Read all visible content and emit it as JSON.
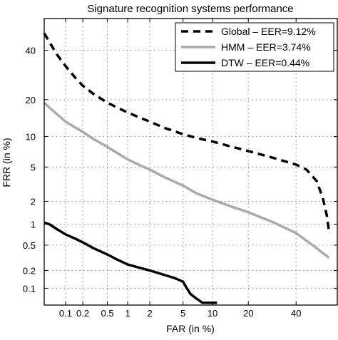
{
  "chart_data": {
    "type": "line",
    "title": "Signature recognition systems performance",
    "xlabel": "FAR (in %)",
    "ylabel": "FRR (in %)",
    "x_scale": "normal-deviate",
    "y_scale": "normal-deviate",
    "xlim": [
      0.04,
      60
    ],
    "ylim": [
      0.05,
      55
    ],
    "xticks": [
      {
        "value": 0.1,
        "label": "0.1"
      },
      {
        "value": 0.2,
        "label": "0.2"
      },
      {
        "value": 0.5,
        "label": "0.5"
      },
      {
        "value": 1,
        "label": "1"
      },
      {
        "value": 2,
        "label": "2"
      },
      {
        "value": 5,
        "label": "5"
      },
      {
        "value": 10,
        "label": "10"
      },
      {
        "value": 20,
        "label": "20"
      },
      {
        "value": 40,
        "label": "40"
      }
    ],
    "yticks": [
      {
        "value": 0.1,
        "label": "0.1"
      },
      {
        "value": 0.2,
        "label": "0.2"
      },
      {
        "value": 0.5,
        "label": "0.5"
      },
      {
        "value": 1,
        "label": "1"
      },
      {
        "value": 2,
        "label": "2"
      },
      {
        "value": 5,
        "label": "5"
      },
      {
        "value": 10,
        "label": "10"
      },
      {
        "value": 20,
        "label": "20"
      },
      {
        "value": 40,
        "label": "40"
      }
    ],
    "grid": true,
    "legend_position": "top-right",
    "series": [
      {
        "name": "Global – EER=9.12%",
        "color": "#000000",
        "dash": "dashed",
        "points": [
          [
            0.04,
            48
          ],
          [
            0.05,
            44
          ],
          [
            0.07,
            38
          ],
          [
            0.1,
            33
          ],
          [
            0.15,
            28
          ],
          [
            0.2,
            25
          ],
          [
            0.3,
            22
          ],
          [
            0.5,
            19
          ],
          [
            0.7,
            17.5
          ],
          [
            1,
            16
          ],
          [
            1.5,
            14.5
          ],
          [
            2,
            13.5
          ],
          [
            3,
            12
          ],
          [
            5,
            10.5
          ],
          [
            7,
            9.7
          ],
          [
            10,
            9
          ],
          [
            15,
            8
          ],
          [
            20,
            7.3
          ],
          [
            30,
            6.2
          ],
          [
            40,
            5.3
          ],
          [
            45,
            4.7
          ],
          [
            50,
            3.5
          ],
          [
            53,
            2.2
          ],
          [
            55,
            1.3
          ],
          [
            56,
            0.8
          ]
        ]
      },
      {
        "name": "HMM – EER=3.74%",
        "color": "#aaaaaa",
        "dash": "solid",
        "points": [
          [
            0.04,
            19
          ],
          [
            0.05,
            17.5
          ],
          [
            0.07,
            15.5
          ],
          [
            0.1,
            13.5
          ],
          [
            0.15,
            12
          ],
          [
            0.2,
            11
          ],
          [
            0.3,
            9.5
          ],
          [
            0.5,
            8
          ],
          [
            0.7,
            7
          ],
          [
            1,
            6
          ],
          [
            1.5,
            5.2
          ],
          [
            2,
            4.7
          ],
          [
            3,
            3.9
          ],
          [
            5,
            3.1
          ],
          [
            7,
            2.5
          ],
          [
            10,
            2.1
          ],
          [
            15,
            1.7
          ],
          [
            20,
            1.45
          ],
          [
            30,
            1.05
          ],
          [
            40,
            0.75
          ],
          [
            50,
            0.45
          ],
          [
            56,
            0.32
          ]
        ]
      },
      {
        "name": "DTW – EER=0.44%",
        "color": "#000000",
        "dash": "solid",
        "points": [
          [
            0.04,
            1.05
          ],
          [
            0.05,
            1.0
          ],
          [
            0.07,
            0.85
          ],
          [
            0.1,
            0.72
          ],
          [
            0.15,
            0.62
          ],
          [
            0.2,
            0.55
          ],
          [
            0.3,
            0.45
          ],
          [
            0.5,
            0.36
          ],
          [
            0.7,
            0.3
          ],
          [
            1,
            0.25
          ],
          [
            1.5,
            0.22
          ],
          [
            2,
            0.2
          ],
          [
            3,
            0.17
          ],
          [
            4,
            0.15
          ],
          [
            5,
            0.13
          ],
          [
            5.5,
            0.1
          ],
          [
            6,
            0.08
          ],
          [
            7,
            0.065
          ],
          [
            8,
            0.055
          ],
          [
            11,
            0.055
          ]
        ]
      }
    ]
  }
}
